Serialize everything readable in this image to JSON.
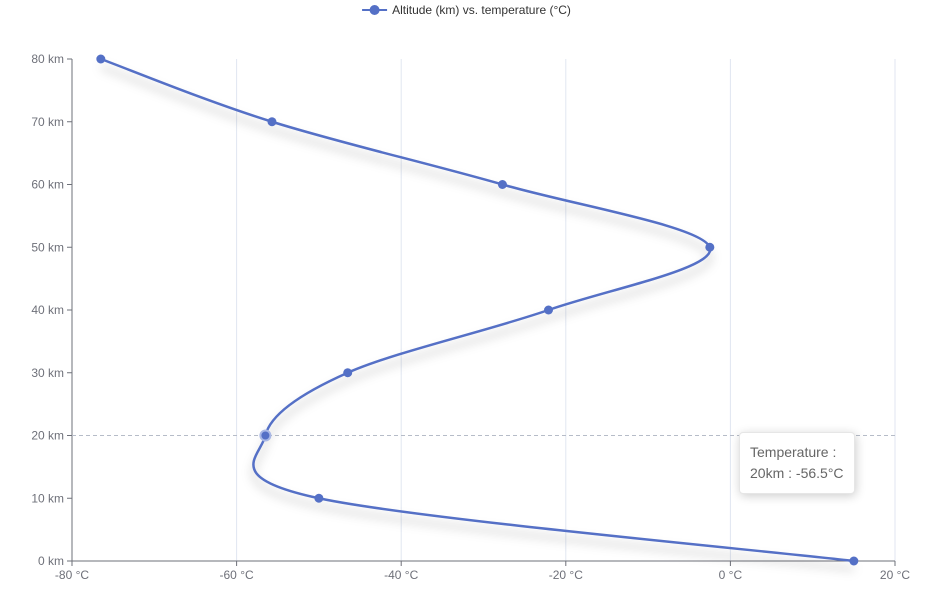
{
  "chart_data": {
    "type": "line",
    "legend": {
      "label": "Altitude (km) vs. temperature (°C)",
      "position": "top-center"
    },
    "series": [
      {
        "name": "Altitude (km) vs. temperature (°C)",
        "color": "#5470c6",
        "smooth": true,
        "points": [
          {
            "x": 15,
            "y": 0
          },
          {
            "x": -50,
            "y": 10
          },
          {
            "x": -56.5,
            "y": 20
          },
          {
            "x": -46.5,
            "y": 30
          },
          {
            "x": -22.1,
            "y": 40
          },
          {
            "x": -2.5,
            "y": 50
          },
          {
            "x": -27.7,
            "y": 60
          },
          {
            "x": -55.7,
            "y": 70
          },
          {
            "x": -76.5,
            "y": 80
          }
        ]
      }
    ],
    "x_axis": {
      "range": [
        -80,
        20
      ],
      "ticks": [
        -80,
        -60,
        -40,
        -20,
        0,
        20
      ],
      "tick_labels": [
        "-80 °C",
        "-60 °C",
        "-40 °C",
        "-20 °C",
        "0 °C",
        "20 °C"
      ],
      "grid": true
    },
    "y_axis": {
      "range": [
        0,
        80
      ],
      "ticks": [
        0,
        10,
        20,
        30,
        40,
        50,
        60,
        70,
        80
      ],
      "tick_labels": [
        "0 km",
        "10 km",
        "20 km",
        "30 km",
        "40 km",
        "50 km",
        "60 km",
        "70 km",
        "80 km"
      ],
      "grid": false
    },
    "pointer_line_y": 20,
    "highlight_index": 2
  },
  "tooltip": {
    "title": "Temperature :",
    "value": "20km : -56.5°C"
  }
}
